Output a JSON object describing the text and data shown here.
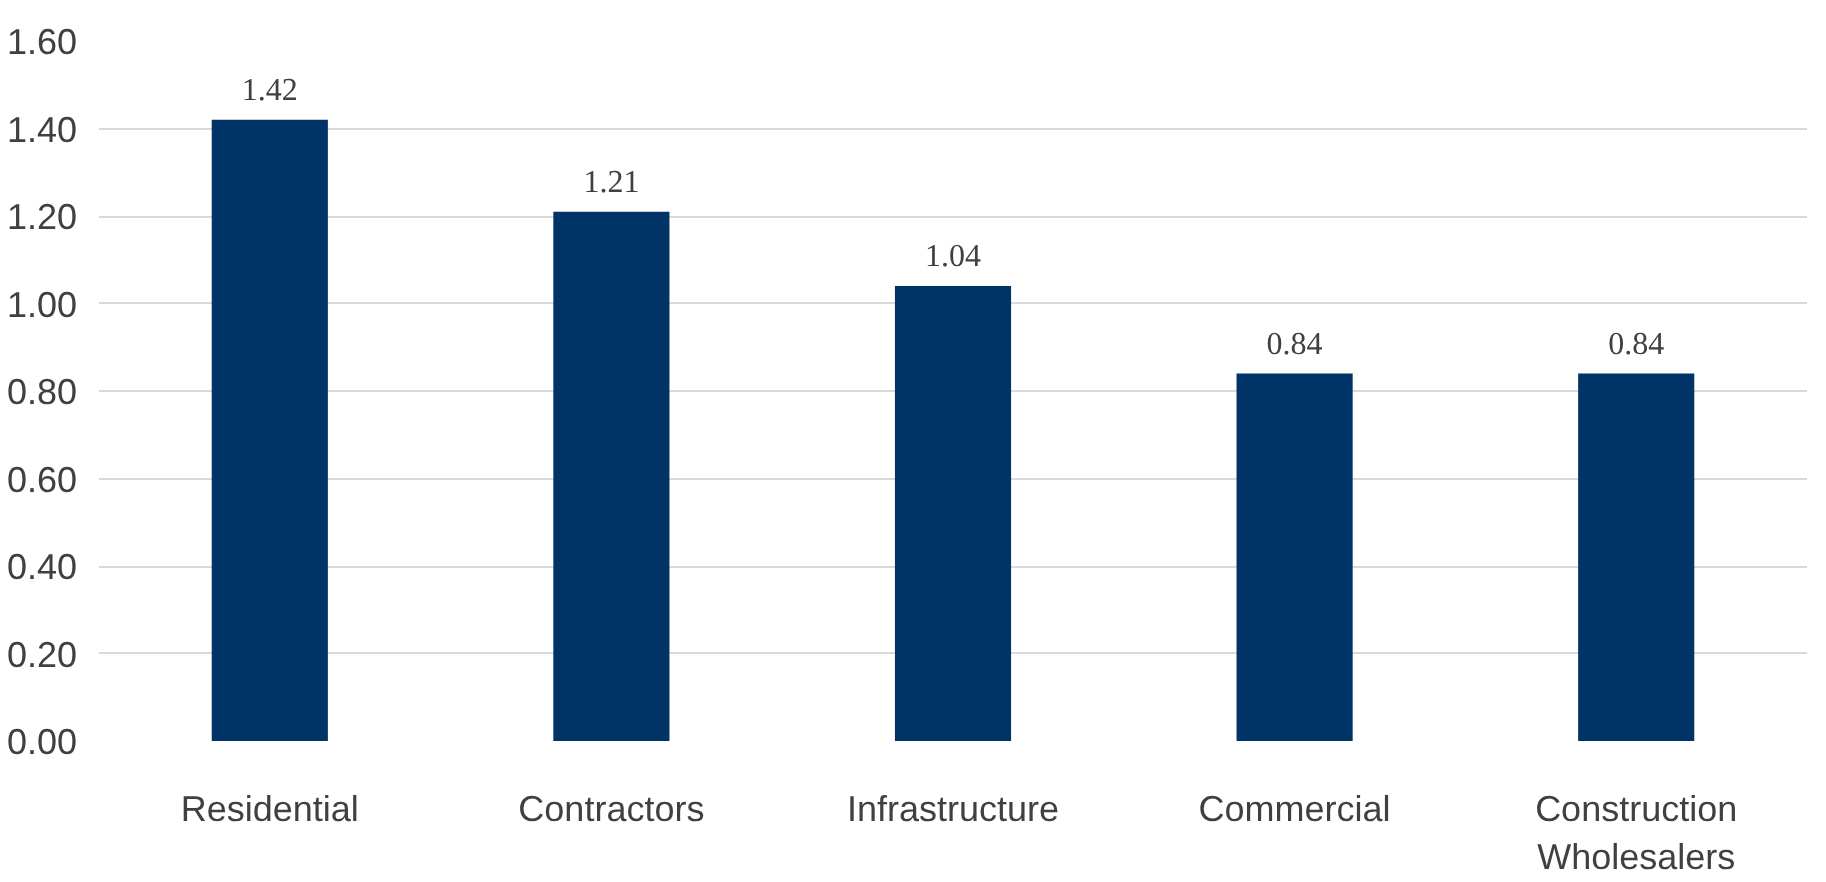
{
  "chart_data": {
    "type": "bar",
    "categories": [
      "Residential",
      "Contractors",
      "Infrastructure",
      "Commercial",
      "Construction\nWholesalers"
    ],
    "values": [
      1.42,
      1.21,
      1.04,
      0.84,
      0.84
    ],
    "color": "#003366",
    "ylim": [
      0,
      1.6
    ],
    "yticks": [
      {
        "value": 0,
        "label": "0.00"
      },
      {
        "value": 0.2,
        "label": "0.20"
      },
      {
        "value": 0.4,
        "label": "0.40"
      },
      {
        "value": 0.6,
        "label": "0.60"
      },
      {
        "value": 0.8,
        "label": "0.80"
      },
      {
        "value": 1.0,
        "label": "1.00"
      },
      {
        "value": 1.2,
        "label": "1.20"
      },
      {
        "value": 1.4,
        "label": "1.40"
      },
      {
        "value": 1.6,
        "label": "1.60"
      }
    ],
    "grid": "y",
    "data_labels": true
  }
}
